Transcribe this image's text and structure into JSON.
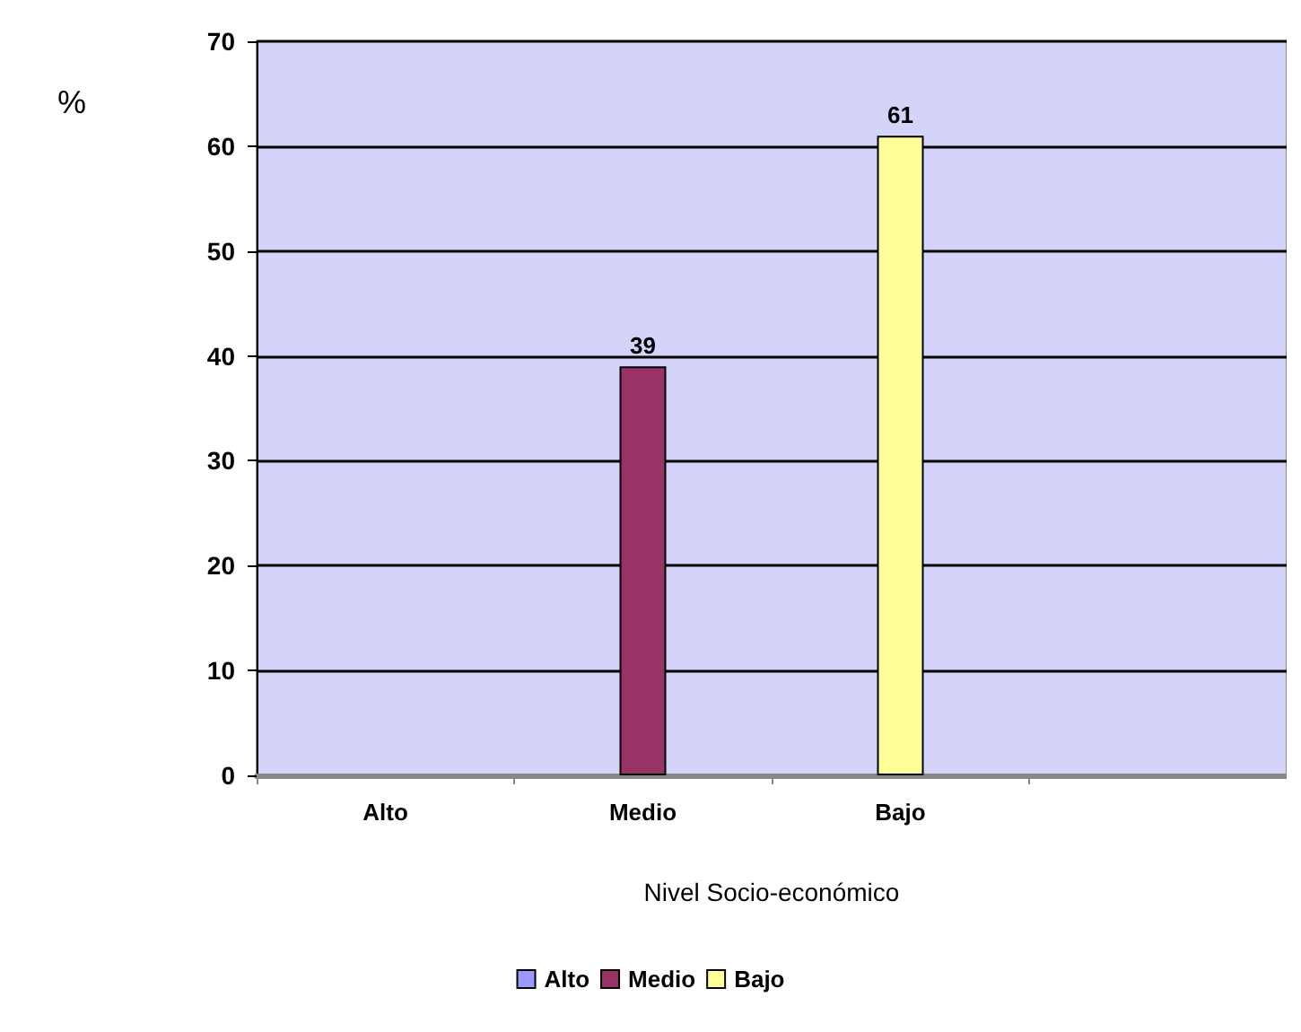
{
  "chart_data": {
    "type": "bar",
    "ylabel": "%",
    "xlabel": "Nivel Socio-económico",
    "categories": [
      "Alto",
      "Medio",
      "Bajo",
      null
    ],
    "series": [
      {
        "name": "Alto",
        "color": "#9999ff",
        "values": [
          null,
          null,
          null,
          null
        ],
        "value_labels": [
          null,
          null,
          null,
          null
        ]
      },
      {
        "name": "Medio",
        "color": "#993366",
        "values": [
          null,
          39,
          null,
          null
        ],
        "value_labels": [
          null,
          "39",
          null,
          null
        ]
      },
      {
        "name": "Bajo",
        "color": "#ffff99",
        "values": [
          null,
          null,
          61,
          null
        ],
        "value_labels": [
          null,
          null,
          "61",
          null
        ]
      }
    ],
    "ylim": [
      0,
      70
    ],
    "yticks": [
      0,
      10,
      20,
      30,
      40,
      50,
      60,
      70
    ],
    "grid": "y",
    "legend": "bottom"
  }
}
